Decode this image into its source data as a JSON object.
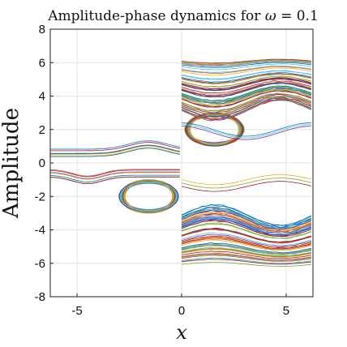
{
  "chart_data": {
    "type": "line",
    "title": "Amplitude-phase dynamics for ω = 0.1",
    "xlabel": "x",
    "ylabel": "Amplitude",
    "xlim": [
      -6.28,
      6.28
    ],
    "ylim": [
      -8,
      8
    ],
    "xticks": [
      -5,
      0,
      5
    ],
    "yticks": [
      -8,
      -6,
      -4,
      -2,
      0,
      2,
      4,
      6,
      8
    ],
    "grid": true,
    "legend": "none",
    "description_of_series": "Many colored trajectories: closed orbits around (1.57, 2) and (-1.57, -2); open trajectories above and below",
    "series": [
      {
        "kind": "orbit",
        "cx": 1.57,
        "cy": 2,
        "rx": 1.25,
        "ry": 0.85,
        "x": [
          0
        ],
        "y": [
          0
        ]
      },
      {
        "kind": "orbit",
        "cx": -1.57,
        "cy": -2,
        "rx": 1.25,
        "ry": 0.85,
        "x": [
          0
        ],
        "y": [
          0
        ]
      }
    ]
  },
  "colors": {
    "palette": [
      "#0072BD",
      "#D95319",
      "#EDB120",
      "#7E2F8E",
      "#77AC30",
      "#4DBEEE",
      "#A2142F"
    ]
  }
}
